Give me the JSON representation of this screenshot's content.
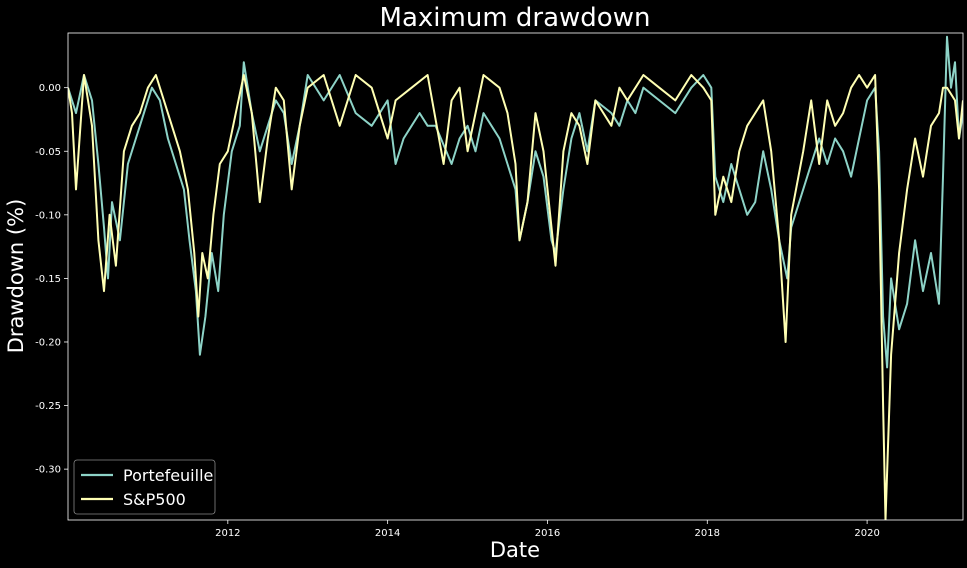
{
  "chart_data": {
    "type": "line",
    "title": "Maximum drawdown",
    "xlabel": "Date",
    "ylabel": "Drawdown (%)",
    "xlim": [
      2010.0,
      2021.2
    ],
    "ylim": [
      -0.34,
      0.043
    ],
    "x_ticks": [
      2012,
      2014,
      2016,
      2018,
      2020
    ],
    "x_tick_labels": [
      "2012",
      "2014",
      "2016",
      "2018",
      "2020"
    ],
    "y_ticks": [
      0.0,
      -0.05,
      -0.1,
      -0.15,
      -0.2,
      -0.25,
      -0.3
    ],
    "y_tick_labels": [
      "0.00",
      "-0.05",
      "-0.10",
      "-0.15",
      "-0.20",
      "-0.25",
      "-0.30"
    ],
    "grid": false,
    "legend_position": "lower-left",
    "series": [
      {
        "name": "Portefeuille",
        "color": "#8dd3c7",
        "points": [
          [
            2010.0,
            0.0
          ],
          [
            2010.1,
            -0.02
          ],
          [
            2010.2,
            0.01
          ],
          [
            2010.3,
            -0.01
          ],
          [
            2010.38,
            -0.06
          ],
          [
            2010.45,
            -0.11
          ],
          [
            2010.5,
            -0.15
          ],
          [
            2010.55,
            -0.09
          ],
          [
            2010.65,
            -0.12
          ],
          [
            2010.75,
            -0.06
          ],
          [
            2010.85,
            -0.04
          ],
          [
            2010.95,
            -0.02
          ],
          [
            2011.05,
            0.0
          ],
          [
            2011.15,
            -0.01
          ],
          [
            2011.25,
            -0.04
          ],
          [
            2011.35,
            -0.06
          ],
          [
            2011.45,
            -0.08
          ],
          [
            2011.52,
            -0.12
          ],
          [
            2011.6,
            -0.16
          ],
          [
            2011.65,
            -0.21
          ],
          [
            2011.72,
            -0.18
          ],
          [
            2011.8,
            -0.13
          ],
          [
            2011.88,
            -0.16
          ],
          [
            2011.95,
            -0.1
          ],
          [
            2012.05,
            -0.05
          ],
          [
            2012.15,
            -0.03
          ],
          [
            2012.2,
            0.02
          ],
          [
            2012.3,
            -0.02
          ],
          [
            2012.4,
            -0.05
          ],
          [
            2012.5,
            -0.03
          ],
          [
            2012.6,
            -0.01
          ],
          [
            2012.7,
            -0.02
          ],
          [
            2012.8,
            -0.06
          ],
          [
            2012.9,
            -0.03
          ],
          [
            2013.0,
            0.01
          ],
          [
            2013.2,
            -0.01
          ],
          [
            2013.4,
            0.01
          ],
          [
            2013.6,
            -0.02
          ],
          [
            2013.8,
            -0.03
          ],
          [
            2014.0,
            -0.01
          ],
          [
            2014.1,
            -0.06
          ],
          [
            2014.2,
            -0.04
          ],
          [
            2014.4,
            -0.02
          ],
          [
            2014.5,
            -0.03
          ],
          [
            2014.6,
            -0.03
          ],
          [
            2014.8,
            -0.06
          ],
          [
            2014.9,
            -0.04
          ],
          [
            2015.0,
            -0.03
          ],
          [
            2015.1,
            -0.05
          ],
          [
            2015.2,
            -0.02
          ],
          [
            2015.4,
            -0.04
          ],
          [
            2015.5,
            -0.06
          ],
          [
            2015.6,
            -0.08
          ],
          [
            2015.65,
            -0.12
          ],
          [
            2015.75,
            -0.09
          ],
          [
            2015.85,
            -0.05
          ],
          [
            2015.95,
            -0.07
          ],
          [
            2016.05,
            -0.12
          ],
          [
            2016.1,
            -0.13
          ],
          [
            2016.2,
            -0.08
          ],
          [
            2016.3,
            -0.04
          ],
          [
            2016.4,
            -0.02
          ],
          [
            2016.5,
            -0.05
          ],
          [
            2016.6,
            -0.01
          ],
          [
            2016.8,
            -0.02
          ],
          [
            2016.9,
            -0.03
          ],
          [
            2017.0,
            -0.01
          ],
          [
            2017.1,
            -0.02
          ],
          [
            2017.2,
            0.0
          ],
          [
            2017.4,
            -0.01
          ],
          [
            2017.6,
            -0.02
          ],
          [
            2017.8,
            0.0
          ],
          [
            2017.95,
            0.01
          ],
          [
            2018.05,
            0.0
          ],
          [
            2018.1,
            -0.07
          ],
          [
            2018.2,
            -0.09
          ],
          [
            2018.3,
            -0.06
          ],
          [
            2018.4,
            -0.08
          ],
          [
            2018.5,
            -0.1
          ],
          [
            2018.6,
            -0.09
          ],
          [
            2018.7,
            -0.05
          ],
          [
            2018.8,
            -0.08
          ],
          [
            2018.9,
            -0.12
          ],
          [
            2019.0,
            -0.15
          ],
          [
            2019.05,
            -0.11
          ],
          [
            2019.2,
            -0.08
          ],
          [
            2019.3,
            -0.06
          ],
          [
            2019.4,
            -0.04
          ],
          [
            2019.5,
            -0.06
          ],
          [
            2019.6,
            -0.04
          ],
          [
            2019.7,
            -0.05
          ],
          [
            2019.8,
            -0.07
          ],
          [
            2019.9,
            -0.04
          ],
          [
            2020.0,
            -0.01
          ],
          [
            2020.1,
            0.0
          ],
          [
            2020.15,
            -0.05
          ],
          [
            2020.2,
            -0.18
          ],
          [
            2020.25,
            -0.22
          ],
          [
            2020.3,
            -0.15
          ],
          [
            2020.4,
            -0.19
          ],
          [
            2020.5,
            -0.17
          ],
          [
            2020.6,
            -0.12
          ],
          [
            2020.7,
            -0.16
          ],
          [
            2020.8,
            -0.13
          ],
          [
            2020.9,
            -0.17
          ],
          [
            2020.95,
            -0.07
          ],
          [
            2021.0,
            0.04
          ],
          [
            2021.05,
            0.0
          ],
          [
            2021.1,
            0.02
          ],
          [
            2021.15,
            -0.04
          ],
          [
            2021.2,
            -0.02
          ]
        ]
      },
      {
        "name": "S&P500",
        "color": "#ffffb3",
        "points": [
          [
            2010.0,
            0.0
          ],
          [
            2010.05,
            -0.02
          ],
          [
            2010.1,
            -0.08
          ],
          [
            2010.2,
            0.01
          ],
          [
            2010.3,
            -0.03
          ],
          [
            2010.38,
            -0.12
          ],
          [
            2010.45,
            -0.16
          ],
          [
            2010.52,
            -0.1
          ],
          [
            2010.6,
            -0.14
          ],
          [
            2010.7,
            -0.05
          ],
          [
            2010.8,
            -0.03
          ],
          [
            2010.9,
            -0.02
          ],
          [
            2011.0,
            0.0
          ],
          [
            2011.1,
            0.01
          ],
          [
            2011.2,
            -0.01
          ],
          [
            2011.3,
            -0.03
          ],
          [
            2011.4,
            -0.05
          ],
          [
            2011.5,
            -0.08
          ],
          [
            2011.58,
            -0.13
          ],
          [
            2011.63,
            -0.18
          ],
          [
            2011.68,
            -0.13
          ],
          [
            2011.75,
            -0.15
          ],
          [
            2011.82,
            -0.1
          ],
          [
            2011.9,
            -0.06
          ],
          [
            2012.0,
            -0.05
          ],
          [
            2012.1,
            -0.02
          ],
          [
            2012.2,
            0.01
          ],
          [
            2012.3,
            -0.02
          ],
          [
            2012.4,
            -0.09
          ],
          [
            2012.5,
            -0.04
          ],
          [
            2012.6,
            0.0
          ],
          [
            2012.7,
            -0.01
          ],
          [
            2012.8,
            -0.08
          ],
          [
            2012.9,
            -0.03
          ],
          [
            2013.0,
            0.0
          ],
          [
            2013.2,
            0.01
          ],
          [
            2013.4,
            -0.03
          ],
          [
            2013.6,
            0.01
          ],
          [
            2013.8,
            0.0
          ],
          [
            2014.0,
            -0.04
          ],
          [
            2014.1,
            -0.01
          ],
          [
            2014.3,
            0.0
          ],
          [
            2014.5,
            0.01
          ],
          [
            2014.7,
            -0.06
          ],
          [
            2014.8,
            -0.01
          ],
          [
            2014.9,
            0.0
          ],
          [
            2015.0,
            -0.05
          ],
          [
            2015.2,
            0.01
          ],
          [
            2015.4,
            0.0
          ],
          [
            2015.5,
            -0.02
          ],
          [
            2015.6,
            -0.06
          ],
          [
            2015.65,
            -0.12
          ],
          [
            2015.75,
            -0.09
          ],
          [
            2015.85,
            -0.02
          ],
          [
            2015.95,
            -0.05
          ],
          [
            2016.05,
            -0.11
          ],
          [
            2016.1,
            -0.14
          ],
          [
            2016.2,
            -0.05
          ],
          [
            2016.3,
            -0.02
          ],
          [
            2016.4,
            -0.03
          ],
          [
            2016.5,
            -0.06
          ],
          [
            2016.6,
            -0.01
          ],
          [
            2016.8,
            -0.03
          ],
          [
            2016.9,
            0.0
          ],
          [
            2017.0,
            -0.01
          ],
          [
            2017.2,
            0.01
          ],
          [
            2017.4,
            0.0
          ],
          [
            2017.6,
            -0.01
          ],
          [
            2017.8,
            0.01
          ],
          [
            2017.95,
            0.0
          ],
          [
            2018.05,
            -0.01
          ],
          [
            2018.1,
            -0.1
          ],
          [
            2018.2,
            -0.07
          ],
          [
            2018.3,
            -0.09
          ],
          [
            2018.4,
            -0.05
          ],
          [
            2018.5,
            -0.03
          ],
          [
            2018.6,
            -0.02
          ],
          [
            2018.7,
            -0.01
          ],
          [
            2018.8,
            -0.05
          ],
          [
            2018.9,
            -0.12
          ],
          [
            2018.98,
            -0.2
          ],
          [
            2019.05,
            -0.1
          ],
          [
            2019.2,
            -0.05
          ],
          [
            2019.3,
            -0.01
          ],
          [
            2019.4,
            -0.06
          ],
          [
            2019.5,
            -0.01
          ],
          [
            2019.6,
            -0.03
          ],
          [
            2019.7,
            -0.02
          ],
          [
            2019.8,
            0.0
          ],
          [
            2019.9,
            0.01
          ],
          [
            2020.0,
            0.0
          ],
          [
            2020.1,
            0.01
          ],
          [
            2020.15,
            -0.08
          ],
          [
            2020.2,
            -0.25
          ],
          [
            2020.23,
            -0.34
          ],
          [
            2020.3,
            -0.21
          ],
          [
            2020.4,
            -0.13
          ],
          [
            2020.5,
            -0.08
          ],
          [
            2020.6,
            -0.04
          ],
          [
            2020.7,
            -0.07
          ],
          [
            2020.8,
            -0.03
          ],
          [
            2020.9,
            -0.02
          ],
          [
            2020.95,
            0.0
          ],
          [
            2021.0,
            0.0
          ],
          [
            2021.1,
            -0.01
          ],
          [
            2021.15,
            -0.04
          ],
          [
            2021.2,
            -0.01
          ]
        ]
      }
    ]
  }
}
